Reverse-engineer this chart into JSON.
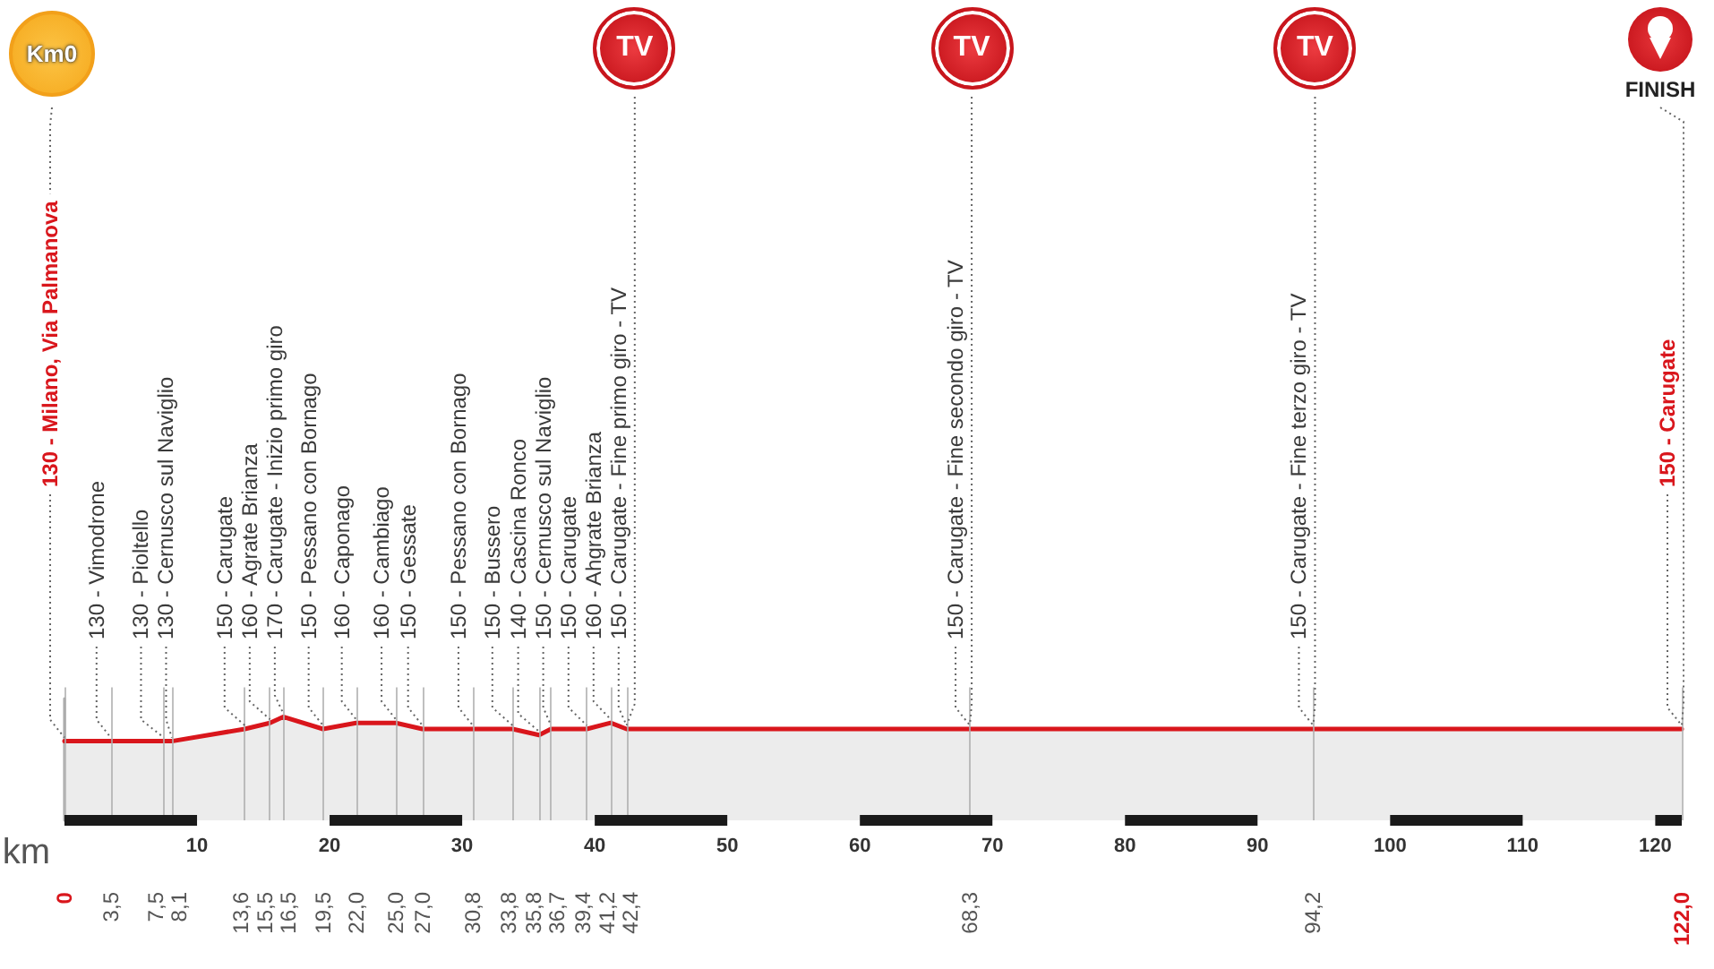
{
  "chart_data": {
    "type": "area",
    "x": [
      0,
      3.5,
      7.5,
      8.1,
      13.6,
      15.5,
      16.5,
      19.5,
      22.0,
      25.0,
      27.0,
      30.8,
      33.8,
      35.8,
      36.7,
      39.4,
      41.2,
      42.4,
      68.3,
      94.2,
      122.0
    ],
    "values": [
      130,
      130,
      130,
      130,
      150,
      160,
      170,
      150,
      160,
      160,
      150,
      150,
      150,
      140,
      150,
      150,
      160,
      150,
      150,
      150,
      150
    ],
    "color": "#d9161c",
    "value_labels": [
      "130 - Milano, Via Palmanova",
      "130 - Vimodrone",
      "130 - Pioltello",
      "130 - Cernusco sul Naviglio",
      "150 - Carugate",
      "160 - Agrate Brianza",
      "170 - Carugate - Inizio primo giro",
      "150 - Pessano con Bornago",
      "160 - Caponago",
      "160 - Cambiago",
      "150 - Gessate",
      "150 - Pessano con Bornago",
      "150 - Bussero",
      "140 - Cascina Ronco",
      "150 - Cernusco sul Naviglio",
      "150 - Carugate",
      "160 - Ahgrate Brianza",
      "150 - Carugate - Fine primo giro - TV",
      "150 - Carugate - Fine secondo giro - TV",
      "150 - Carugate - Fine terzo giro - TV",
      "150 - Carugate"
    ],
    "xlim": [
      0,
      122
    ],
    "xticks": [
      0,
      {
        "value": 3.5,
        "label": "3,5"
      },
      {
        "value": 7.5,
        "label": "7,5"
      },
      {
        "value": 8.1,
        "label": "8,1"
      },
      {
        "value": 13.6,
        "label": "13,6"
      },
      {
        "value": 15.5,
        "label": "15,5"
      },
      {
        "value": 16.5,
        "label": "16,5"
      },
      {
        "value": 19.5,
        "label": "19,5"
      },
      {
        "value": 22.0,
        "label": "22,0"
      },
      {
        "value": 25.0,
        "label": "25,0"
      },
      {
        "value": 27.0,
        "label": "27,0"
      },
      {
        "value": 30.8,
        "label": "30,8"
      },
      {
        "value": 33.8,
        "label": "33,8"
      },
      {
        "value": 35.8,
        "label": "35,8"
      },
      {
        "value": 36.7,
        "label": "36,7"
      },
      {
        "value": 39.4,
        "label": "39,4"
      },
      {
        "value": 41.2,
        "label": "41,2"
      },
      {
        "value": 42.4,
        "label": "42,4"
      },
      {
        "value": 68.3,
        "label": "68,3"
      },
      {
        "value": 94.2,
        "label": "94,2"
      },
      {
        "value": 122.0,
        "label": "122,0"
      }
    ],
    "xlabel": "km",
    "x2lim": [
      0,
      122
    ],
    "x2ticks": [
      10,
      20,
      30,
      40,
      50,
      60,
      70,
      80,
      90,
      100,
      110,
      120
    ],
    "ylim": [
      0,
      200
    ],
    "grid": "x",
    "tick_labels": "x",
    "marker": "none",
    "annotations": [
      "Km0",
      {
        "text": "TV",
        "x": 42.4,
        "y": 150
      },
      {
        "text": "TV",
        "x": 68.3,
        "y": 150
      },
      {
        "text": "TV",
        "x": 94.2,
        "y": 150
      },
      {
        "text": "FINISH",
        "x": 122.0,
        "y": 150
      }
    ]
  }
}
